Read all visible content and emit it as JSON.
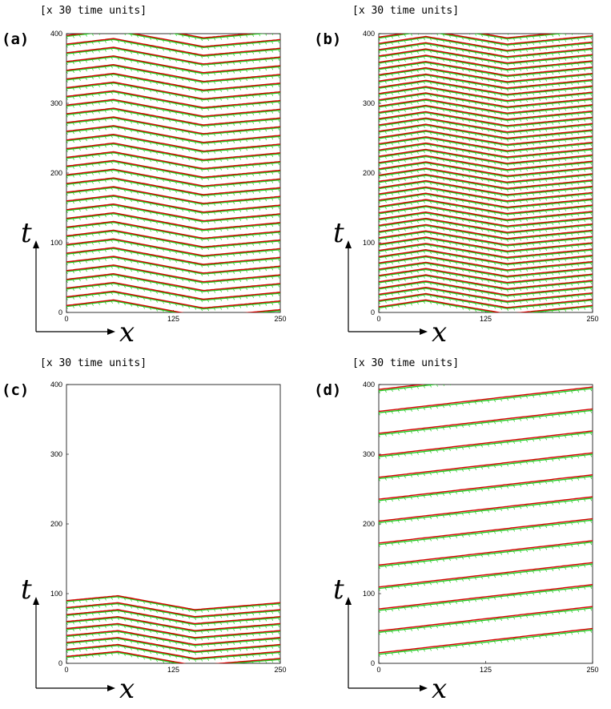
{
  "chart_data": [
    {
      "panel": "(a)",
      "type": "line",
      "time_unit_note": "[x 30 time units]",
      "xlabel": "x",
      "ylabel": "t",
      "xlim": [
        0,
        250
      ],
      "ylim": [
        0,
        400
      ],
      "x_ticks": [
        "0",
        "125",
        "250"
      ],
      "y_ticks": [
        "0",
        "100",
        "200",
        "300",
        "400"
      ],
      "colors": {
        "upper": "#d40000",
        "lower": "#22cc22"
      },
      "pattern": {
        "kind": "chevron",
        "period_t": 12.5,
        "start_t": 10,
        "peak_x": 55,
        "valley_x": 160,
        "rise_left": 8,
        "drop_mid": 24,
        "rise_right": 10
      }
    },
    {
      "panel": "(b)",
      "type": "line",
      "time_unit_note": "[x 30 time units]",
      "xlabel": "x",
      "ylabel": "t",
      "xlim": [
        0,
        250
      ],
      "ylim": [
        0,
        400
      ],
      "x_ticks": [
        "0",
        "125",
        "250"
      ],
      "y_ticks": [
        "0",
        "100",
        "200",
        "300",
        "400"
      ],
      "colors": {
        "upper": "#d40000",
        "lower": "#22cc22"
      },
      "pattern": {
        "kind": "chevron",
        "period_t": 9,
        "start_t": 8,
        "peak_x": 55,
        "valley_x": 150,
        "rise_left": 10,
        "drop_mid": 20,
        "rise_right": 12
      }
    },
    {
      "panel": "(c)",
      "type": "line",
      "time_unit_note": "[x 30 time units]",
      "xlabel": "x",
      "ylabel": "t",
      "xlim": [
        0,
        250
      ],
      "ylim": [
        0,
        400
      ],
      "x_ticks": [
        "0",
        "125",
        "250"
      ],
      "y_ticks": [
        "0",
        "100",
        "200",
        "300",
        "400"
      ],
      "colors": {
        "upper": "#d40000",
        "lower": "#22cc22"
      },
      "pattern": {
        "kind": "chevron",
        "period_t": 10,
        "start_t": 10,
        "end_t": 90,
        "peak_x": 60,
        "valley_x": 150,
        "rise_left": 7,
        "drop_mid": 20,
        "rise_right": 10
      }
    },
    {
      "panel": "(d)",
      "type": "line",
      "time_unit_note": "[x 30 time units]",
      "xlabel": "x",
      "ylabel": "t",
      "xlim": [
        0,
        250
      ],
      "ylim": [
        0,
        400
      ],
      "x_ticks": [
        "0",
        "125",
        "250"
      ],
      "y_ticks": [
        "0",
        "100",
        "200",
        "300",
        "400"
      ],
      "colors": {
        "upper": "#d40000",
        "lower": "#22cc22"
      },
      "pattern": {
        "kind": "diagonal",
        "period_t": 31.5,
        "start_t": 15,
        "slope": 0.14
      }
    }
  ]
}
